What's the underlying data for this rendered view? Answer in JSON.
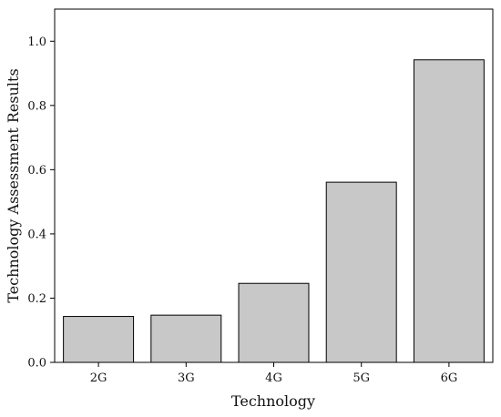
{
  "chart_data": {
    "type": "bar",
    "categories": [
      "2G",
      "3G",
      "4G",
      "5G",
      "6G"
    ],
    "values": [
      0.143,
      0.147,
      0.246,
      0.561,
      0.942
    ],
    "xlabel": "Technology",
    "ylabel": "Technology Assessment Results",
    "ylim": [
      0.0,
      1.1
    ],
    "yticks": [
      "0.0",
      "0.2",
      "0.4",
      "0.6",
      "0.8",
      "1.0"
    ],
    "grid": false,
    "legend": "none",
    "bar_color": "#c8c8c8",
    "bar_edge_color": "#000000"
  }
}
